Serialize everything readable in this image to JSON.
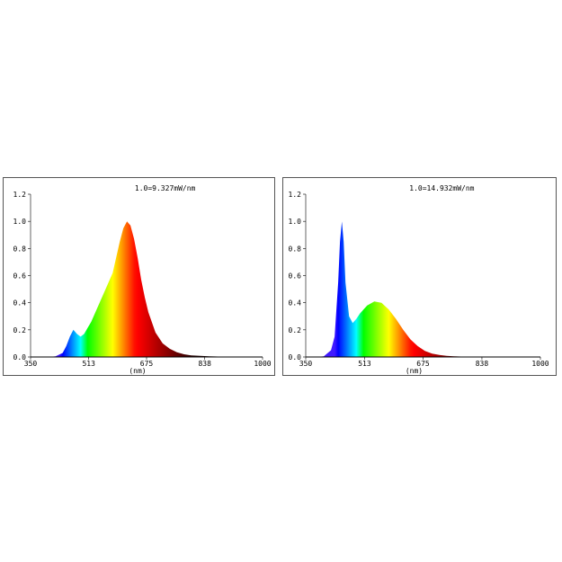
{
  "chart_data": [
    {
      "type": "area",
      "title": "1.0=9.327mW/nm",
      "xlabel": "(nm)",
      "ylabel": "",
      "xlim": [
        350,
        1000
      ],
      "ylim": [
        0,
        1.2
      ],
      "xticks": [
        "350",
        "513",
        "675",
        "838",
        "1000"
      ],
      "yticks": [
        "0.0",
        "0.2",
        "0.4",
        "0.6",
        "0.8",
        "1.0",
        "1.2"
      ],
      "grid": false,
      "fill": "wavelength-colored spectrum",
      "series": [
        {
          "x": [
            380,
            400,
            420,
            440,
            450,
            460,
            470,
            480,
            490,
            500,
            520,
            540,
            560,
            580,
            600,
            610,
            620,
            630,
            640,
            650,
            660,
            670,
            680,
            700,
            720,
            740,
            760,
            780,
            800,
            850,
            900,
            1000
          ],
          "values": [
            0,
            0,
            0.005,
            0.03,
            0.08,
            0.15,
            0.2,
            0.17,
            0.15,
            0.17,
            0.26,
            0.38,
            0.5,
            0.62,
            0.85,
            0.95,
            1.0,
            0.97,
            0.87,
            0.73,
            0.57,
            0.44,
            0.33,
            0.18,
            0.1,
            0.06,
            0.035,
            0.02,
            0.012,
            0.005,
            0.002,
            0
          ]
        }
      ]
    },
    {
      "type": "area",
      "title": "1.0=14.932mW/nm",
      "xlabel": "(nm)",
      "ylabel": "",
      "xlim": [
        350,
        1000
      ],
      "ylim": [
        0,
        1.2
      ],
      "xticks": [
        "350",
        "513",
        "675",
        "838",
        "1000"
      ],
      "yticks": [
        "0.0",
        "0.2",
        "0.4",
        "0.6",
        "0.8",
        "1.0",
        "1.2"
      ],
      "grid": false,
      "fill": "wavelength-colored spectrum",
      "series": [
        {
          "x": [
            380,
            400,
            420,
            430,
            440,
            445,
            450,
            455,
            460,
            470,
            480,
            490,
            500,
            520,
            540,
            560,
            580,
            600,
            620,
            640,
            660,
            680,
            700,
            720,
            740,
            760,
            780,
            800,
            850,
            1000
          ],
          "values": [
            0,
            0.005,
            0.05,
            0.15,
            0.55,
            0.85,
            1.0,
            0.85,
            0.55,
            0.3,
            0.25,
            0.28,
            0.32,
            0.38,
            0.41,
            0.4,
            0.35,
            0.28,
            0.2,
            0.13,
            0.08,
            0.045,
            0.025,
            0.015,
            0.008,
            0.005,
            0.003,
            0.002,
            0.001,
            0
          ]
        }
      ]
    }
  ]
}
